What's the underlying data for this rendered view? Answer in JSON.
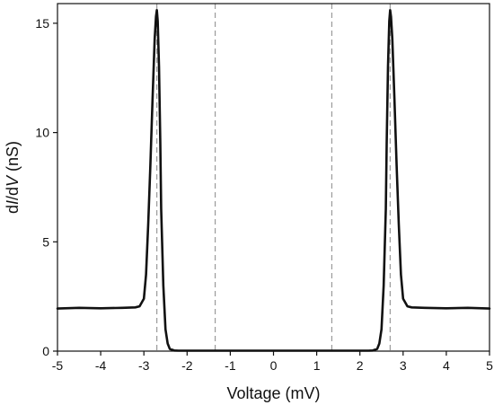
{
  "chart_data": {
    "type": "line",
    "title": "",
    "xlabel": "Voltage (mV)",
    "ylabel_parts": [
      {
        "text": "d",
        "italic": false
      },
      {
        "text": "I",
        "italic": true
      },
      {
        "text": "/d",
        "italic": false
      },
      {
        "text": "V",
        "italic": true
      },
      {
        "text": " (nS)",
        "italic": false
      }
    ],
    "xlim": [
      -5,
      5
    ],
    "ylim": [
      0,
      15.9
    ],
    "xticks": [
      -5,
      -4,
      -3,
      -2,
      -1,
      0,
      1,
      2,
      3,
      4,
      5
    ],
    "xtick_labels": [
      "-5",
      "-4",
      "-3",
      "-2",
      "-1",
      "0",
      "1",
      "2",
      "3",
      "4",
      "5"
    ],
    "yticks": [
      0,
      5,
      10,
      15
    ],
    "ytick_labels": [
      "0",
      "5",
      "10",
      "15"
    ],
    "grid": false,
    "line_color": "#111111",
    "reference_line_color": "#999999",
    "reference_lines_x": [
      -2.7,
      -1.35,
      1.35,
      2.7
    ],
    "series": [
      {
        "x": [
          -5.0,
          -4.5,
          -4.0,
          -3.5,
          -3.2,
          -3.1,
          -3.0,
          -2.95,
          -2.9,
          -2.85,
          -2.8,
          -2.75,
          -2.72,
          -2.7,
          -2.68,
          -2.65,
          -2.62,
          -2.6,
          -2.55,
          -2.5,
          -2.45,
          -2.4,
          -2.3,
          -2.2,
          -2.0,
          -1.5,
          -1.0,
          -0.5,
          0.0,
          0.5,
          1.0,
          1.5,
          2.0,
          2.2,
          2.3,
          2.4,
          2.45,
          2.5,
          2.55,
          2.6,
          2.62,
          2.65,
          2.68,
          2.7,
          2.72,
          2.75,
          2.8,
          2.85,
          2.9,
          2.95,
          3.0,
          3.1,
          3.2,
          3.5,
          4.0,
          4.5,
          5.0
        ],
        "y": [
          1.95,
          1.98,
          1.96,
          1.98,
          2.0,
          2.05,
          2.4,
          3.5,
          5.8,
          8.5,
          11.5,
          14.3,
          15.3,
          15.6,
          15.1,
          13.0,
          9.5,
          6.5,
          3.0,
          1.0,
          0.35,
          0.1,
          0.03,
          0.02,
          0.02,
          0.02,
          0.02,
          0.02,
          0.02,
          0.02,
          0.02,
          0.02,
          0.02,
          0.02,
          0.03,
          0.1,
          0.35,
          1.0,
          3.0,
          6.5,
          9.5,
          13.0,
          15.1,
          15.6,
          15.3,
          14.3,
          11.5,
          8.5,
          5.8,
          3.5,
          2.4,
          2.05,
          2.0,
          1.98,
          1.96,
          1.98,
          1.95
        ]
      }
    ]
  }
}
